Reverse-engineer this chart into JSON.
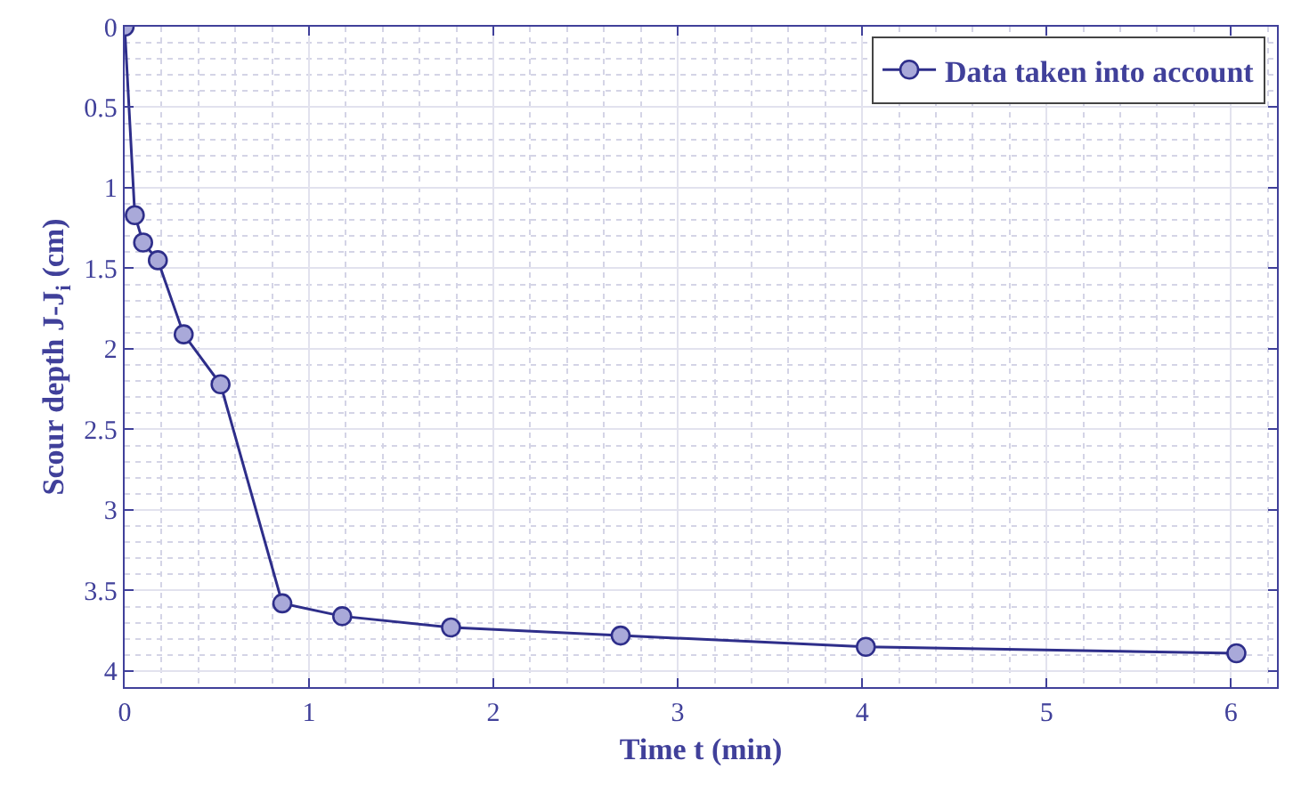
{
  "chart_data": {
    "type": "line",
    "xlabel": "Time t (min)",
    "ylabel": "Scour depth J-J$_{i}$ (cm)",
    "x": [
      0,
      0.055,
      0.1,
      0.18,
      0.32,
      0.52,
      0.855,
      1.18,
      1.77,
      2.69,
      4.02,
      6.03
    ],
    "series": [
      {
        "name": "Data taken into account",
        "color": "#2e2e8a",
        "values": [
          0,
          1.17,
          1.34,
          1.45,
          1.91,
          2.22,
          3.58,
          3.66,
          3.73,
          3.78,
          3.85,
          3.89
        ]
      }
    ],
    "xlim": [
      0,
      6.25
    ],
    "xticks": [
      0,
      1,
      2,
      3,
      4,
      5,
      6
    ],
    "ylim": [
      4.1,
      0
    ],
    "yticks": [
      0,
      0.5,
      1,
      1.5,
      2,
      2.5,
      3,
      3.5,
      4
    ],
    "grid": true,
    "legend": "top right",
    "marker": "circle",
    "line_style": "solid"
  }
}
